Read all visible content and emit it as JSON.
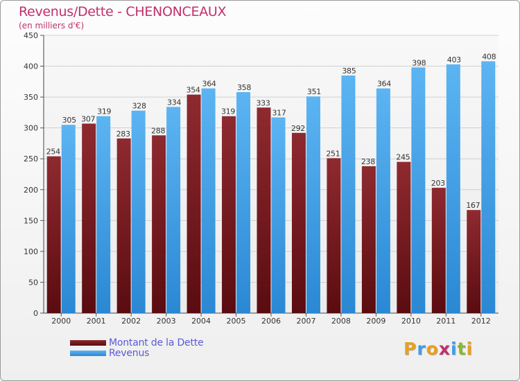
{
  "chart_data": {
    "type": "bar",
    "title": "Revenus/Dette - CHENONCEAUX",
    "subtitle": "(en milliers d'€)",
    "categories": [
      "2000",
      "2001",
      "2002",
      "2003",
      "2004",
      "2005",
      "2006",
      "2007",
      "2008",
      "2009",
      "2010",
      "2011",
      "2012"
    ],
    "series": [
      {
        "name": "Montant de la Dette",
        "color": "#7a1a1f",
        "values": [
          254,
          307,
          283,
          288,
          354,
          319,
          333,
          292,
          251,
          238,
          245,
          203,
          167
        ]
      },
      {
        "name": "Revenus",
        "color": "#3d9ee8",
        "values": [
          305,
          319,
          328,
          334,
          364,
          358,
          317,
          351,
          385,
          364,
          398,
          403,
          408
        ]
      }
    ],
    "ylim": [
      0,
      450
    ],
    "yticks": [
      0,
      50,
      100,
      150,
      200,
      250,
      300,
      350,
      400,
      450
    ],
    "grid": true,
    "legend_position": "bottom-left"
  },
  "logo": {
    "letters": [
      "P",
      "r",
      "o",
      "x",
      "i",
      "t",
      "i"
    ],
    "colors": [
      "#e8a020",
      "#3d9ee8",
      "#e8a020",
      "#c0306a",
      "#3d9ee8",
      "#88b830",
      "#e8a020"
    ]
  }
}
